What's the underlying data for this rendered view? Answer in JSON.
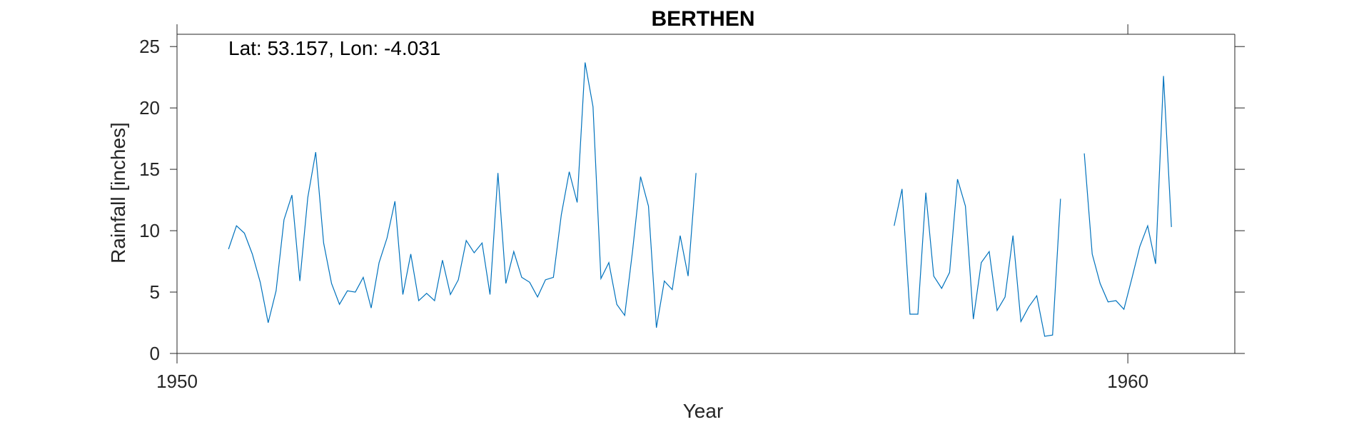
{
  "chart_data": {
    "type": "line",
    "title": "BERTHEN",
    "xlabel": "Year",
    "ylabel": "Rainfall [inches]",
    "annotation": "Lat: 53.157, Lon: -4.031",
    "xlim": [
      1950,
      1961.125
    ],
    "ylim": [
      0,
      26
    ],
    "xticks": [
      1950,
      1960
    ],
    "yticks": [
      0,
      5,
      10,
      15,
      20,
      25
    ],
    "grid": false,
    "line_color": "#0072BD",
    "series": [
      {
        "segments": [
          {
            "x_start": 1950.542,
            "step": 0.08333,
            "values": [
              8.5,
              10.4,
              9.8,
              8.1,
              5.8,
              2.5,
              5.1,
              10.9,
              12.9,
              5.9,
              12.7,
              16.4,
              9.0,
              5.7,
              4.0,
              5.1,
              5.0,
              6.2,
              3.7,
              7.4,
              9.4,
              12.4,
              4.8,
              8.1,
              4.3,
              4.9,
              4.3,
              7.6,
              4.8,
              6.0,
              9.2,
              8.2,
              9.0,
              4.8,
              14.7,
              5.7,
              8.3,
              6.2,
              5.8,
              4.6,
              6.0,
              6.2,
              11.3,
              14.8,
              12.3,
              23.7,
              20.1,
              6.1,
              7.4,
              4.0,
              3.1,
              8.4,
              14.4,
              12.0,
              2.1,
              5.9,
              5.2,
              9.6,
              6.3,
              14.7
            ]
          },
          {
            "x_start": 1957.542,
            "step": 0.08333,
            "values": [
              10.4,
              13.4,
              3.2,
              3.2,
              13.1,
              6.3,
              5.3,
              6.6,
              14.2,
              12.0,
              2.8,
              7.4,
              8.3,
              3.5,
              4.6,
              9.6,
              2.6,
              3.8,
              4.7,
              1.4,
              1.5,
              12.6
            ]
          },
          {
            "x_start": 1959.542,
            "step": 0.08333,
            "values": [
              16.3,
              8.1,
              5.7,
              4.2,
              4.3,
              3.6,
              6.1,
              8.7,
              10.4,
              7.3,
              22.6,
              10.3
            ]
          }
        ]
      }
    ]
  }
}
